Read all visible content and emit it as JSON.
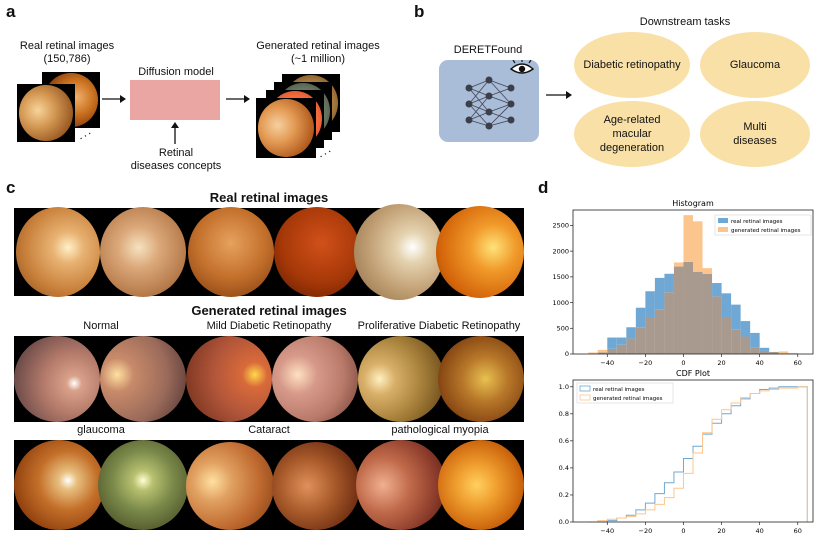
{
  "panel_a": {
    "letter": "a",
    "real_label_line1": "Real retinal images",
    "real_label_line2": "(150,786)",
    "diffusion_label": "Diffusion model",
    "concepts_line1": "Retinal",
    "concepts_line2": "diseases concepts",
    "generated_label_line1": "Generated retinal images",
    "generated_label_line2": "(~1 million)"
  },
  "panel_b": {
    "letter": "b",
    "model_name": "DERETFound",
    "downstream_title": "Downstream tasks",
    "tasks": [
      "Diabetic retinopathy",
      "Glaucoma",
      "Age-related macular degeneration",
      "Multi diseases"
    ]
  },
  "panel_c": {
    "letter": "c",
    "real_title": "Real retinal images",
    "generated_title": "Generated retinal images",
    "categories": [
      "Normal",
      "Mild Diabetic Retinopathy",
      "Proliferative Diabetic Retinopathy",
      "glaucoma",
      "Cataract",
      "pathological myopia"
    ]
  },
  "panel_d": {
    "letter": "d"
  },
  "colors": {
    "real": "#6fa8d4",
    "generated": "#fcc58d",
    "overlap": "#a99a8f",
    "ellipse": "#f9e0a7",
    "model_box": "#a9bdd8",
    "diffusion": "#eaa6a3"
  },
  "chart_data": [
    {
      "type": "bar",
      "title": "Histogram",
      "legend": [
        "real retinal images",
        "generated retinal images"
      ],
      "legend_position": "top-right",
      "x_bin_edges": [
        -50,
        -45,
        -40,
        -35,
        -30,
        -25,
        -20,
        -15,
        -10,
        -5,
        0,
        5,
        10,
        15,
        20,
        25,
        30,
        35,
        40,
        45,
        50,
        55,
        60,
        65
      ],
      "series": [
        {
          "name": "real retinal images",
          "values": [
            0,
            30,
            320,
            320,
            520,
            900,
            1220,
            1480,
            1560,
            1700,
            1790,
            1600,
            1560,
            1380,
            1180,
            960,
            640,
            410,
            120,
            40,
            10,
            0,
            0
          ]
        },
        {
          "name": "generated retinal images",
          "values": [
            30,
            80,
            100,
            180,
            300,
            520,
            700,
            860,
            1200,
            1780,
            2700,
            2580,
            1670,
            1120,
            720,
            480,
            340,
            120,
            60,
            40,
            50,
            20,
            0
          ]
        }
      ],
      "xticks": [
        -40,
        -20,
        0,
        20,
        40,
        60
      ],
      "yticks": [
        0,
        500,
        1000,
        1500,
        2000,
        2500
      ],
      "xlim": [
        -58,
        68
      ],
      "ylim": [
        0,
        2800
      ],
      "grid": false
    },
    {
      "type": "line",
      "title": "CDF Plot",
      "legend": [
        "real retinal images",
        "generated retinal images"
      ],
      "legend_position": "top-left",
      "x": [
        -50,
        -45,
        -40,
        -35,
        -30,
        -25,
        -20,
        -15,
        -10,
        -5,
        0,
        5,
        10,
        15,
        20,
        25,
        30,
        35,
        40,
        45,
        50,
        55,
        60,
        65
      ],
      "series": [
        {
          "name": "real retinal images",
          "values": [
            0,
            0,
            0.01,
            0.03,
            0.05,
            0.09,
            0.14,
            0.21,
            0.29,
            0.37,
            0.47,
            0.56,
            0.65,
            0.73,
            0.8,
            0.86,
            0.91,
            0.95,
            0.98,
            0.99,
            1.0,
            1.0,
            1.0,
            0
          ]
        },
        {
          "name": "generated retinal images",
          "values": [
            0,
            0.01,
            0.02,
            0.03,
            0.04,
            0.06,
            0.09,
            0.13,
            0.18,
            0.25,
            0.36,
            0.51,
            0.66,
            0.76,
            0.83,
            0.88,
            0.92,
            0.95,
            0.97,
            0.98,
            0.99,
            0.99,
            1.0,
            0
          ]
        }
      ],
      "xticks": [
        -40,
        -20,
        0,
        20,
        40,
        60
      ],
      "yticks": [
        0.0,
        0.2,
        0.4,
        0.6,
        0.8,
        1.0
      ],
      "xlim": [
        -58,
        68
      ],
      "ylim": [
        0,
        1.05
      ],
      "grid": false
    }
  ]
}
